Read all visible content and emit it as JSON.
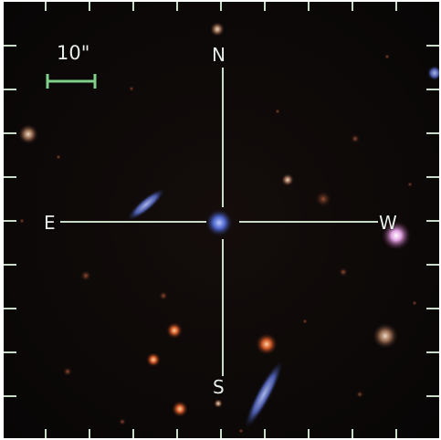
{
  "compass": {
    "north": "N",
    "south": "S",
    "east": "E",
    "west": "W"
  },
  "scale_bar": {
    "label": "10\""
  },
  "colors": {
    "overlay": "#c8dcc8",
    "scale_bar": "#7fd08a",
    "sky": "#0b0807"
  }
}
